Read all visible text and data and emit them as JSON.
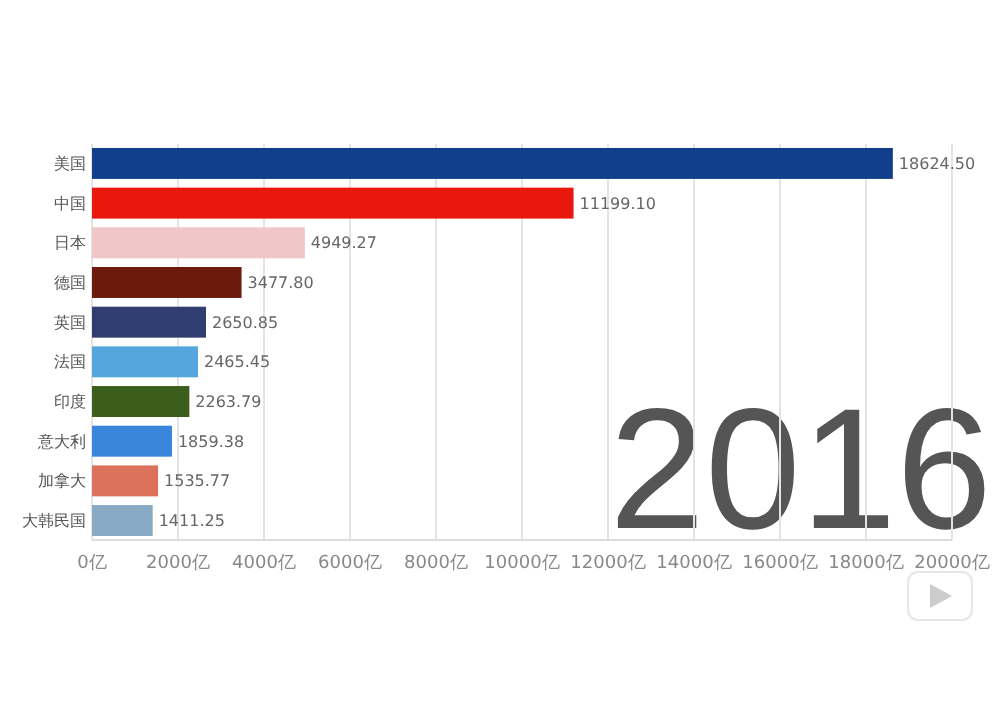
{
  "chart_data": {
    "type": "bar",
    "orientation": "horizontal",
    "categories": [
      "美国",
      "中国",
      "日本",
      "德国",
      "英国",
      "法国",
      "印度",
      "意大利",
      "加拿大",
      "大韩民国"
    ],
    "values": [
      18624.5,
      11199.1,
      4949.27,
      3477.8,
      2650.85,
      2465.45,
      2263.79,
      1859.38,
      1535.77,
      1411.25
    ],
    "value_labels": [
      "18624.50",
      "11199.10",
      "4949.27",
      "3477.80",
      "2650.85",
      "2465.45",
      "2263.79",
      "1859.38",
      "1535.77",
      "1411.25"
    ],
    "colors": [
      "#123f8c",
      "#e8180c",
      "#f0c6c8",
      "#6b1a0c",
      "#2f3e6e",
      "#55a6dc",
      "#3b5e1d",
      "#3a86dc",
      "#dc725c",
      "#88aac4"
    ],
    "xlim": [
      0,
      20000
    ],
    "xticks": [
      {
        "value": 0,
        "label": "0亿"
      },
      {
        "value": 2000,
        "label": "2000亿"
      },
      {
        "value": 4000,
        "label": "4000亿"
      },
      {
        "value": 6000,
        "label": "6000亿"
      },
      {
        "value": 8000,
        "label": "8000亿"
      },
      {
        "value": 10000,
        "label": "10000亿"
      },
      {
        "value": 12000,
        "label": "12000亿"
      },
      {
        "value": 14000,
        "label": "14000亿"
      },
      {
        "value": 16000,
        "label": "16000亿"
      },
      {
        "value": 18000,
        "label": "18000亿"
      },
      {
        "value": 20000,
        "label": "20000亿"
      }
    ],
    "grid": "x",
    "annotations": [
      "2016"
    ]
  }
}
